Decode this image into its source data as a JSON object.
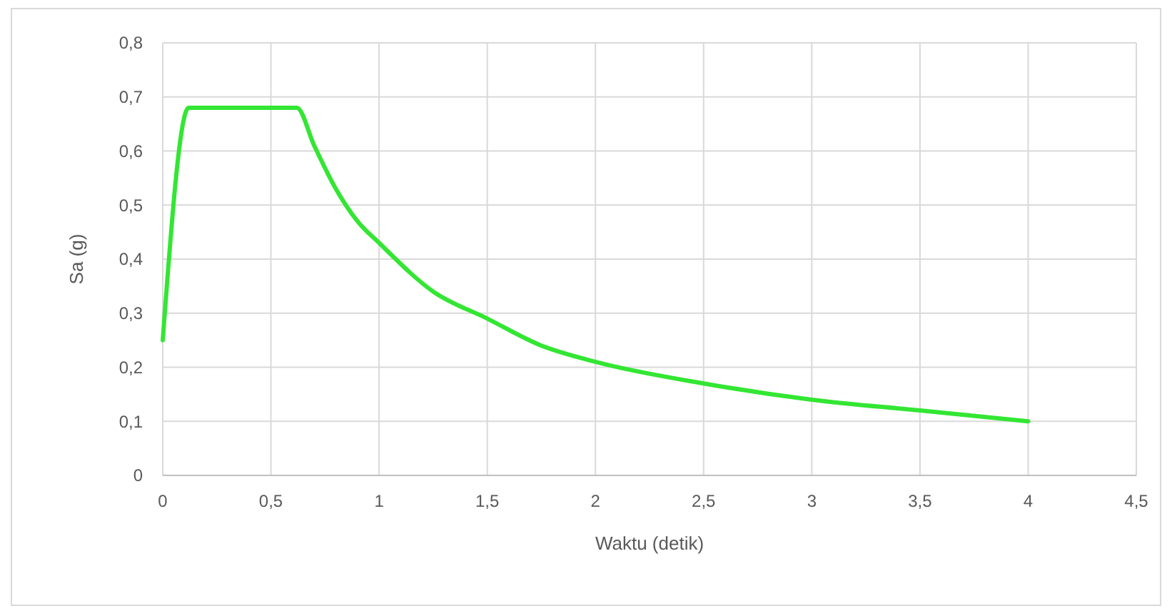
{
  "chart_data": {
    "type": "line",
    "xlabel": "Waktu (detik)",
    "ylabel": "Sa (g)",
    "x": [
      0,
      0.12,
      0.62,
      0.7,
      0.8,
      0.9,
      1,
      1.25,
      1.5,
      1.75,
      2,
      2.5,
      3,
      3.5,
      4
    ],
    "series": [
      {
        "color": "#33e633",
        "values": [
          0.25,
          0.68,
          0.68,
          0.61,
          0.53,
          0.47,
          0.43,
          0.34,
          0.29,
          0.24,
          0.21,
          0.17,
          0.14,
          0.12,
          0.1
        ]
      }
    ],
    "xlim": [
      0,
      4.5
    ],
    "ylim": [
      0,
      0.8
    ],
    "xticks": [
      0,
      {
        "value": 0.5,
        "label": "0,5"
      },
      1,
      {
        "value": 1.5,
        "label": "1,5"
      },
      2,
      {
        "value": 2.5,
        "label": "2,5"
      },
      3,
      {
        "value": 3.5,
        "label": "3,5"
      },
      4,
      {
        "value": 4.5,
        "label": "4,5"
      }
    ],
    "yticks": [
      0,
      {
        "value": 0.1,
        "label": "0,1"
      },
      {
        "value": 0.2,
        "label": "0,2"
      },
      {
        "value": 0.3,
        "label": "0,3"
      },
      {
        "value": 0.4,
        "label": "0,4"
      },
      {
        "value": 0.5,
        "label": "0,5"
      },
      {
        "value": 0.6,
        "label": "0,6"
      },
      {
        "value": 0.7,
        "label": "0,7"
      },
      {
        "value": 0.8,
        "label": "0,8"
      }
    ],
    "grid": true,
    "marker": "none",
    "line_style": "solid"
  }
}
